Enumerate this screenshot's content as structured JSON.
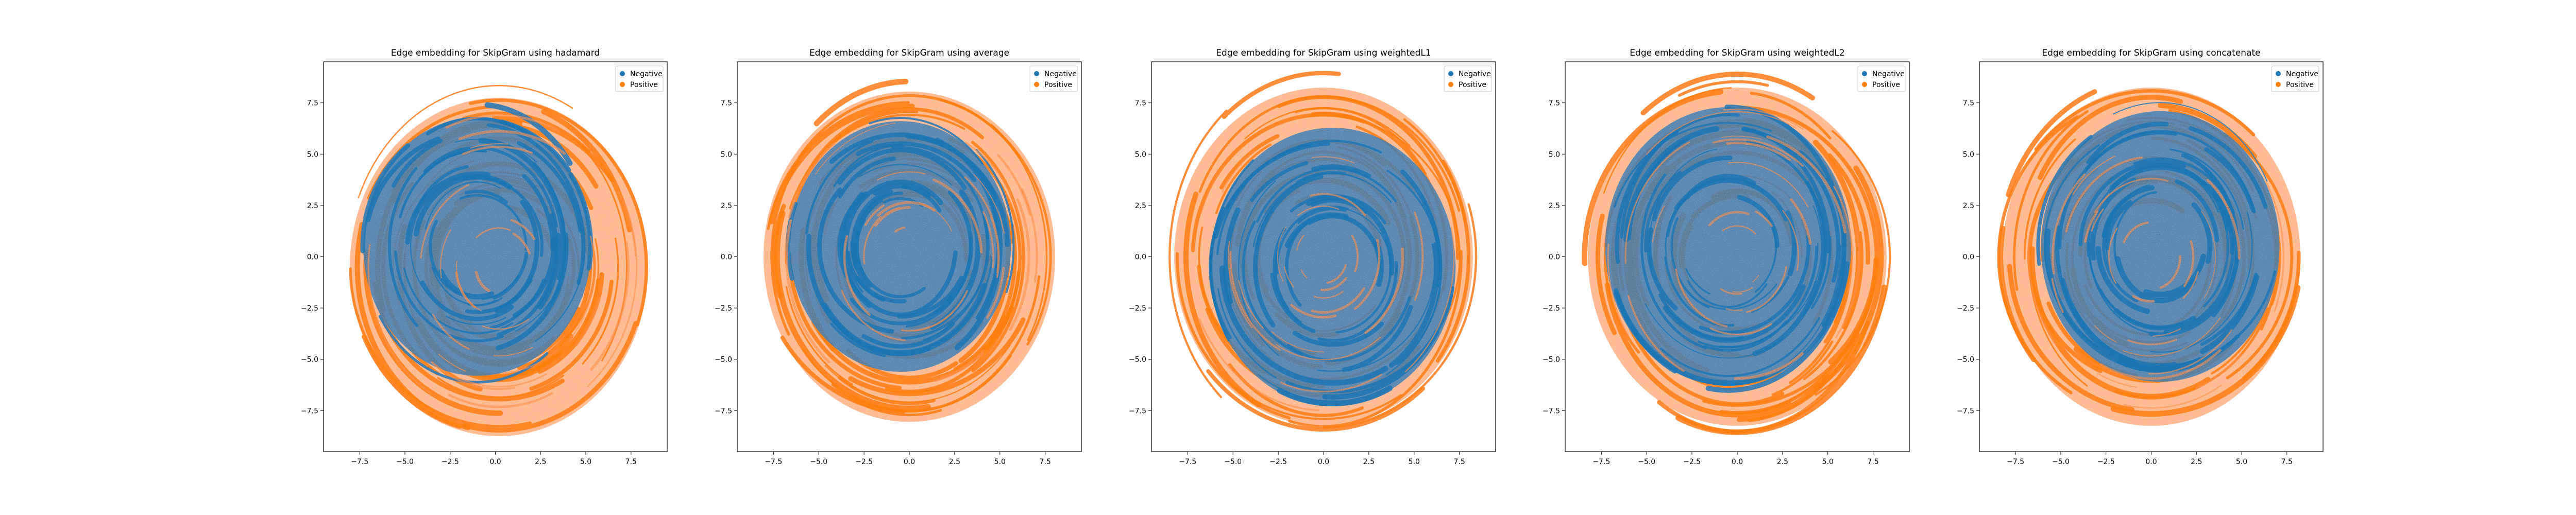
{
  "colors": {
    "negative": "#1f77b4",
    "positive": "#ff7f0e"
  },
  "chart_data": [
    {
      "type": "scatter",
      "title": "Edge embedding for SkipGram using hadamard",
      "xlim": [
        -9.5,
        9.5
      ],
      "ylim": [
        -9.5,
        9.5
      ],
      "xticks": [
        -7.5,
        -5.0,
        -2.5,
        0.0,
        2.5,
        5.0,
        7.5
      ],
      "xtick_labels": [
        "−7.5",
        "−5.0",
        "−2.5",
        "0.0",
        "2.5",
        "5.0",
        "7.5"
      ],
      "yticks": [
        7.5,
        5.0,
        2.5,
        0.0,
        -2.5,
        -5.0,
        -7.5
      ],
      "ytick_labels": [
        "7.5",
        "5.0",
        "2.5",
        "0.0",
        "−2.5",
        "−5.0",
        "−7.5"
      ],
      "legend": {
        "position": "top-right",
        "entries": [
          "Negative",
          "Positive"
        ]
      },
      "grid": false,
      "series": [
        {
          "name": "Negative",
          "color": "#1f77b4",
          "center": [
            -1.0,
            0.5
          ],
          "radius": 6.5
        },
        {
          "name": "Positive",
          "color": "#ff7f0e",
          "center": [
            0.2,
            -0.5
          ],
          "radius": 8.5
        }
      ]
    },
    {
      "type": "scatter",
      "title": "Edge embedding for SkipGram using average",
      "xlim": [
        -9.5,
        9.5
      ],
      "ylim": [
        -9.5,
        9.5
      ],
      "xticks": [
        -7.5,
        -5.0,
        -2.5,
        0.0,
        2.5,
        5.0,
        7.5
      ],
      "xtick_labels": [
        "−7.5",
        "−5.0",
        "−2.5",
        "0.0",
        "2.5",
        "5.0",
        "7.5"
      ],
      "yticks": [
        7.5,
        5.0,
        2.5,
        0.0,
        -2.5,
        -5.0,
        -7.5
      ],
      "ytick_labels": [
        "7.5",
        "5.0",
        "2.5",
        "0.0",
        "−2.5",
        "−5.0",
        "−7.5"
      ],
      "legend": {
        "position": "top-right",
        "entries": [
          "Negative",
          "Positive"
        ]
      },
      "grid": false,
      "series": [
        {
          "name": "Negative",
          "color": "#1f77b4",
          "center": [
            -0.5,
            0.5
          ],
          "radius": 6.3
        },
        {
          "name": "Positive",
          "color": "#ff7f0e",
          "center": [
            0.0,
            0.0
          ],
          "radius": 8.3
        }
      ]
    },
    {
      "type": "scatter",
      "title": "Edge embedding for SkipGram using weightedL1",
      "xlim": [
        -9.5,
        9.5
      ],
      "ylim": [
        -9.5,
        9.5
      ],
      "xticks": [
        -7.5,
        -5.0,
        -2.5,
        0.0,
        2.5,
        5.0,
        7.5
      ],
      "xtick_labels": [
        "−7.5",
        "−5.0",
        "−2.5",
        "0.0",
        "2.5",
        "5.0",
        "7.5"
      ],
      "yticks": [
        7.5,
        5.0,
        2.5,
        0.0,
        -2.5,
        -5.0,
        -7.5
      ],
      "ytick_labels": [
        "7.5",
        "5.0",
        "2.5",
        "0.0",
        "−2.5",
        "−5.0",
        "−7.5"
      ],
      "legend": {
        "position": "top-right",
        "entries": [
          "Negative",
          "Positive"
        ]
      },
      "grid": false,
      "series": [
        {
          "name": "Negative",
          "color": "#1f77b4",
          "center": [
            0.5,
            -0.5
          ],
          "radius": 7.0
        },
        {
          "name": "Positive",
          "color": "#ff7f0e",
          "center": [
            0.0,
            0.0
          ],
          "radius": 8.5
        }
      ]
    },
    {
      "type": "scatter",
      "title": "Edge embedding for SkipGram using weightedL2",
      "xlim": [
        -9.5,
        9.5
      ],
      "ylim": [
        -9.5,
        9.5
      ],
      "xticks": [
        -7.5,
        -5.0,
        -2.5,
        0.0,
        2.5,
        5.0,
        7.5
      ],
      "xtick_labels": [
        "−7.5",
        "−5.0",
        "−2.5",
        "0.0",
        "2.5",
        "5.0",
        "7.5"
      ],
      "yticks": [
        7.5,
        5.0,
        2.5,
        0.0,
        -2.5,
        -5.0,
        -7.5
      ],
      "ytick_labels": [
        "7.5",
        "5.0",
        "2.5",
        "0.0",
        "−2.5",
        "−5.0",
        "−7.5"
      ],
      "legend": {
        "position": "top-right",
        "entries": [
          "Negative",
          "Positive"
        ]
      },
      "grid": false,
      "series": [
        {
          "name": "Negative",
          "color": "#1f77b4",
          "center": [
            -0.5,
            0.5
          ],
          "radius": 7.0
        },
        {
          "name": "Positive",
          "color": "#ff7f0e",
          "center": [
            0.0,
            0.0
          ],
          "radius": 8.5
        }
      ]
    },
    {
      "type": "scatter",
      "title": "Edge embedding for SkipGram using concatenate",
      "xlim": [
        -9.5,
        9.5
      ],
      "ylim": [
        -9.5,
        9.5
      ],
      "xticks": [
        -7.5,
        -5.0,
        -2.5,
        0.0,
        2.5,
        5.0,
        7.5
      ],
      "xtick_labels": [
        "−7.5",
        "−5.0",
        "−2.5",
        "0.0",
        "2.5",
        "5.0",
        "7.5"
      ],
      "yticks": [
        7.5,
        5.0,
        2.5,
        0.0,
        -2.5,
        -5.0,
        -7.5
      ],
      "ytick_labels": [
        "7.5",
        "5.0",
        "2.5",
        "0.0",
        "−2.5",
        "−5.0",
        "−7.5"
      ],
      "legend": {
        "position": "top-right",
        "entries": [
          "Negative",
          "Positive"
        ]
      },
      "grid": false,
      "series": [
        {
          "name": "Negative",
          "color": "#1f77b4",
          "center": [
            0.5,
            0.5
          ],
          "radius": 6.8
        },
        {
          "name": "Positive",
          "color": "#ff7f0e",
          "center": [
            0.0,
            0.0
          ],
          "radius": 8.5
        }
      ]
    }
  ]
}
